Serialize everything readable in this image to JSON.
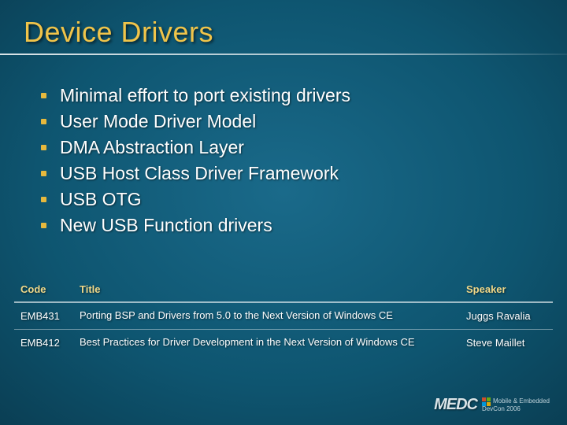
{
  "title": "Device Drivers",
  "bullets": [
    "Minimal effort to port existing drivers",
    "User Mode Driver Model",
    "DMA Abstraction Layer",
    "USB Host Class Driver Framework",
    "USB OTG",
    "New USB Function drivers"
  ],
  "table": {
    "headers": {
      "code": "Code",
      "title": "Title",
      "speaker": "Speaker"
    },
    "rows": [
      {
        "code": "EMB431",
        "title": "Porting BSP and Drivers from 5.0 to the Next Version of Windows CE",
        "speaker": "Juggs Ravalia"
      },
      {
        "code": "EMB412",
        "title": "Best Practices for Driver Development in the Next Version of Windows CE",
        "speaker": "Steve Maillet"
      }
    ]
  },
  "footer": {
    "brand": "MEDC",
    "sub1": "Mobile & Embedded",
    "sub2": "DevCon 2006"
  },
  "colors": {
    "title": "#f0c44a",
    "bullet": "#e6b93d",
    "header": "#f0d98a",
    "text": "#ffffff"
  }
}
